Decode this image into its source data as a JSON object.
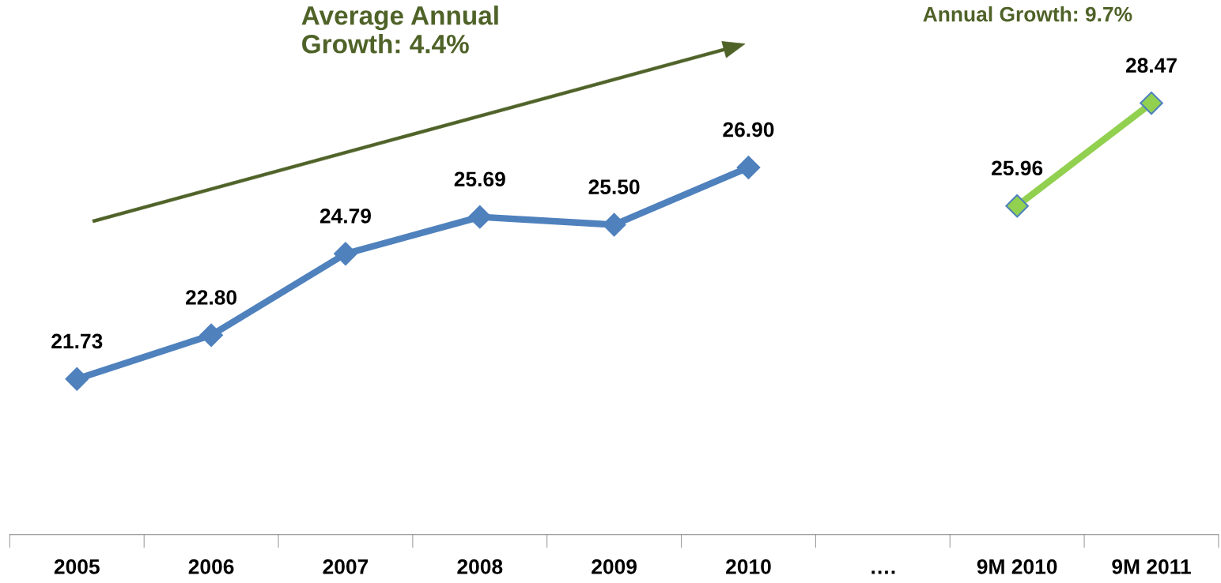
{
  "chart_data": {
    "type": "line",
    "categories": [
      "2005",
      "2006",
      "2007",
      "2008",
      "2009",
      "2010",
      "….",
      "9M 2010",
      "9M 2011"
    ],
    "series": [
      {
        "color": "#4f81bd",
        "values": [
          21.73,
          22.8,
          24.79,
          25.69,
          25.5,
          26.9,
          null,
          null,
          null
        ],
        "value_labels": [
          "21.73",
          "22.80",
          "24.79",
          "25.69",
          "25.50",
          "26.90",
          null,
          null,
          null
        ]
      },
      {
        "color": "#92d050",
        "values": [
          null,
          null,
          null,
          null,
          null,
          null,
          null,
          25.96,
          28.47
        ],
        "value_labels": [
          null,
          null,
          null,
          null,
          null,
          null,
          null,
          "25.96",
          "28.47"
        ]
      }
    ],
    "marker": "diamond",
    "line_style": "solid",
    "grid": false,
    "annotations": [
      "Average Annual Growth: 4.4%",
      "Annual Growth: 9.7%"
    ]
  }
}
